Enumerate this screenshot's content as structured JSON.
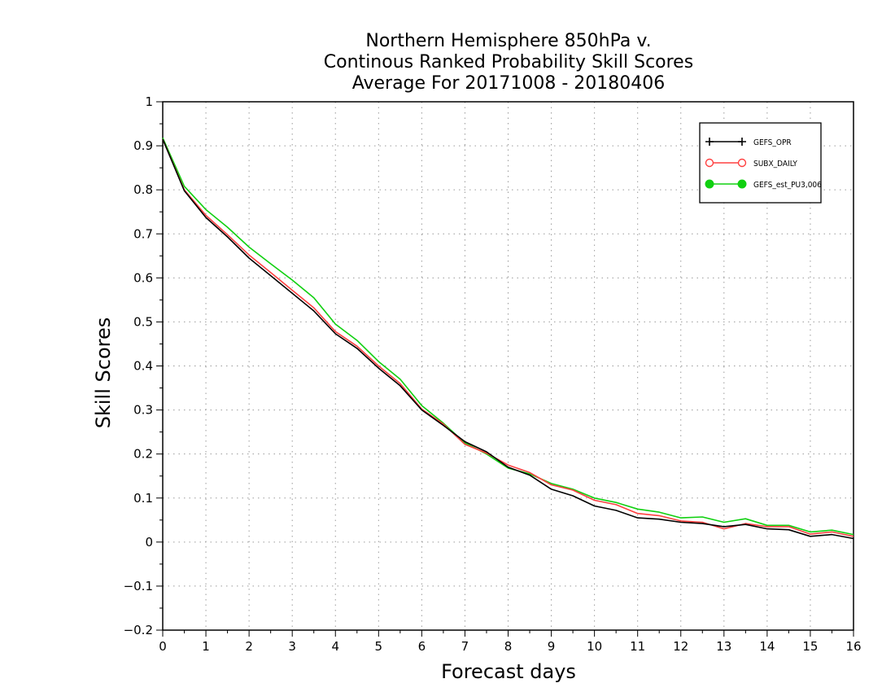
{
  "chart_data": {
    "type": "line",
    "title": [
      "Northern Hemisphere 850hPa v.",
      "Continous Ranked Probability Skill Scores",
      "Average For 20171008 - 20180406"
    ],
    "xlabel": "Forecast days",
    "ylabel": "Skill Scores",
    "xlim": [
      0,
      16
    ],
    "ylim": [
      -0.2,
      1
    ],
    "xticks": [
      0,
      1,
      2,
      3,
      4,
      5,
      6,
      7,
      8,
      9,
      10,
      11,
      12,
      13,
      14,
      15,
      16
    ],
    "xtick_labels": [
      "0",
      "1",
      "2",
      "3",
      "4",
      "5",
      "6",
      "7",
      "8",
      "9",
      "10",
      "11",
      "12",
      "13",
      "14",
      "15",
      "16"
    ],
    "yticks": [
      -0.2,
      -0.1,
      0,
      0.1,
      0.2,
      0.3,
      0.4,
      0.5,
      0.6,
      0.7,
      0.8,
      0.9,
      1
    ],
    "ytick_labels": [
      "−0.2",
      "−0.1",
      "0",
      "0.1",
      "0.2",
      "0.3",
      "0.4",
      "0.5",
      "0.6",
      "0.7",
      "0.8",
      "0.9",
      "1"
    ],
    "grid": true,
    "legend_position": "top-right",
    "x": [
      0,
      0.5,
      1,
      1.5,
      2,
      2.5,
      3,
      3.5,
      4,
      4.5,
      5,
      5.5,
      6,
      6.5,
      7,
      7.5,
      8,
      8.5,
      9,
      9.5,
      10,
      10.5,
      11,
      11.5,
      12,
      12.5,
      13,
      13.5,
      14,
      14.5,
      15,
      15.5,
      16
    ],
    "series": [
      {
        "name": "GEFS_OPR",
        "color": "#000000",
        "marker": "plus",
        "values": [
          0.915,
          0.798,
          0.737,
          0.693,
          0.645,
          0.605,
          0.565,
          0.525,
          0.473,
          0.44,
          0.395,
          0.355,
          0.3,
          0.265,
          0.228,
          0.205,
          0.17,
          0.152,
          0.12,
          0.105,
          0.082,
          0.072,
          0.055,
          0.052,
          0.045,
          0.042,
          0.035,
          0.04,
          0.03,
          0.028,
          0.013,
          0.017,
          0.008
        ]
      },
      {
        "name": "SUBX_DAILY",
        "color": "#ff4040",
        "marker": "open-circle",
        "values": [
          0.915,
          0.8,
          0.742,
          0.698,
          0.652,
          0.612,
          0.572,
          0.532,
          0.478,
          0.445,
          0.4,
          0.36,
          0.302,
          0.268,
          0.222,
          0.202,
          0.175,
          0.158,
          0.13,
          0.118,
          0.095,
          0.085,
          0.065,
          0.06,
          0.048,
          0.045,
          0.03,
          0.042,
          0.035,
          0.035,
          0.018,
          0.023,
          0.013
        ]
      },
      {
        "name": "GEFS_est_PU3,006",
        "color": "#10d010",
        "marker": "filled-circle",
        "values": [
          0.918,
          0.808,
          0.755,
          0.715,
          0.67,
          0.632,
          0.595,
          0.555,
          0.495,
          0.458,
          0.41,
          0.37,
          0.31,
          0.27,
          0.225,
          0.2,
          0.168,
          0.155,
          0.133,
          0.12,
          0.1,
          0.09,
          0.075,
          0.068,
          0.055,
          0.057,
          0.045,
          0.053,
          0.038,
          0.038,
          0.023,
          0.027,
          0.017
        ]
      }
    ]
  }
}
